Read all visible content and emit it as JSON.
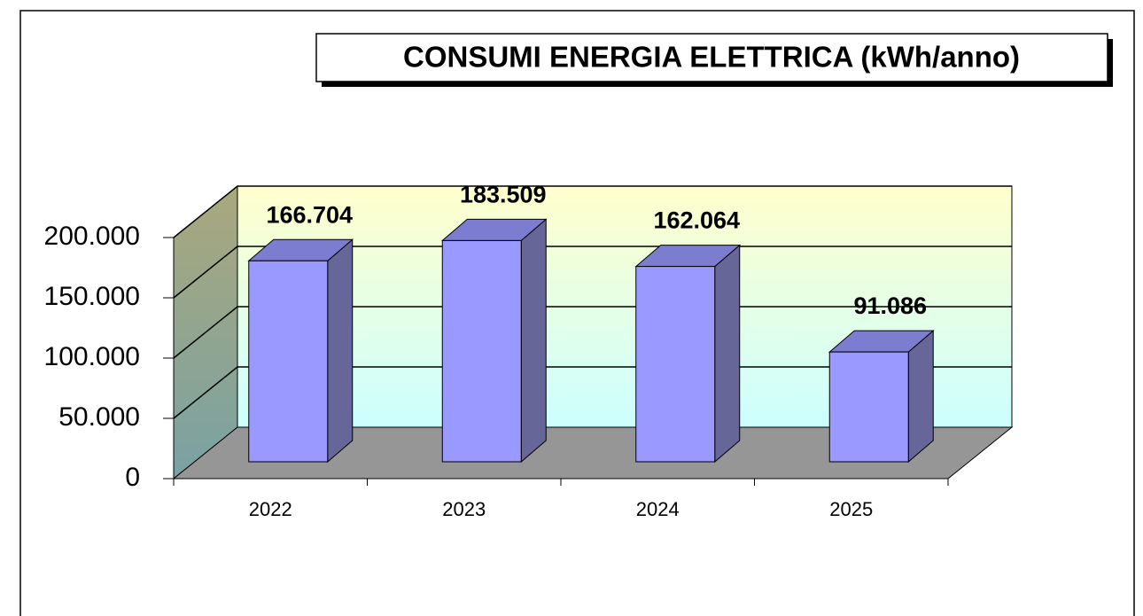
{
  "chart_data": {
    "type": "bar3d",
    "title": "CONSUMI ENERGIA ELETTRICA (kWh/anno)",
    "categories": [
      "2022",
      "2023",
      "2024",
      "2025"
    ],
    "values": [
      166704,
      183509,
      162064,
      91086
    ],
    "value_labels": [
      "166.704",
      "183.509",
      "162.064",
      "91.086"
    ],
    "color": "#9999ff",
    "ylim": [
      0,
      200000
    ],
    "yticks": [
      0,
      {
        "value": 50000,
        "label": "50.000"
      },
      {
        "value": 100000,
        "label": "100.000"
      },
      {
        "value": 150000,
        "label": "150.000"
      },
      {
        "value": 200000,
        "label": "200.000"
      }
    ],
    "grid": true
  }
}
